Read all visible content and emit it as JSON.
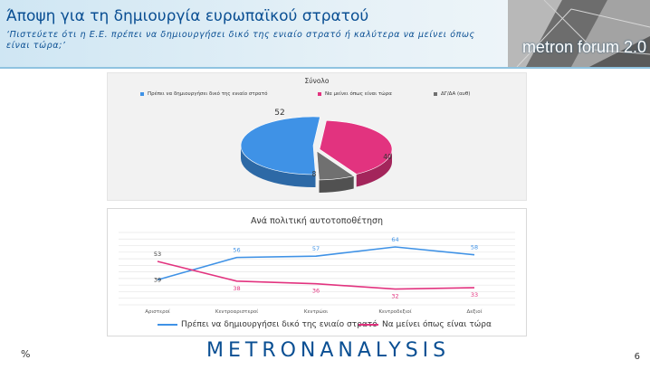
{
  "header": {
    "title": "Άποψη για τη δημιουργία ευρωπαϊκού στρατού",
    "subtitle": "‘Πιστεύετε ότι η Ε.Ε. πρέπει να δημιουργήσει δικό της ενιαίο στρατό ή καλύτερα να μείνει όπως είναι τώρα;’",
    "logo_text": "metron forum 2.0"
  },
  "colors": {
    "blue": "#3f92e6",
    "pink": "#e2337f",
    "grey": "#707070",
    "title_blue": "#0a4f93"
  },
  "chart_data": [
    {
      "type": "pie",
      "title": "Σύνολο",
      "categories": [
        "Πρέπει να δημιουργήσει δικό της ενιαίο στρατό",
        "Να μείνει όπως είναι τώρα",
        "ΔΓ/ΔΑ (αυθ)"
      ],
      "values": [
        52,
        40,
        8
      ],
      "colors": [
        "#3f92e6",
        "#e2337f",
        "#707070"
      ],
      "legend": "top"
    },
    {
      "type": "line",
      "title": "Ανά πολιτική αυτοτοποθέτηση",
      "categories": [
        "Αριστεροί",
        "Κεντροαριστεροί",
        "Κεντρώοι",
        "Κεντροδεξιοί",
        "Δεξιοί"
      ],
      "series": [
        {
          "name": "Πρέπει να δημιουργήσει δικό της ενιαίο στρατό",
          "values": [
            39,
            56,
            57,
            64,
            58
          ],
          "color": "#3f92e6"
        },
        {
          "name": "Να μείνει όπως είναι τώρα",
          "values": [
            53,
            38,
            36,
            32,
            33
          ],
          "color": "#e2337f"
        }
      ],
      "ylim": [
        20,
        75
      ],
      "grid": true,
      "legend": "bottom"
    }
  ],
  "footer": {
    "brand": "METRONANALYSIS",
    "unit": "%",
    "page": "6"
  }
}
